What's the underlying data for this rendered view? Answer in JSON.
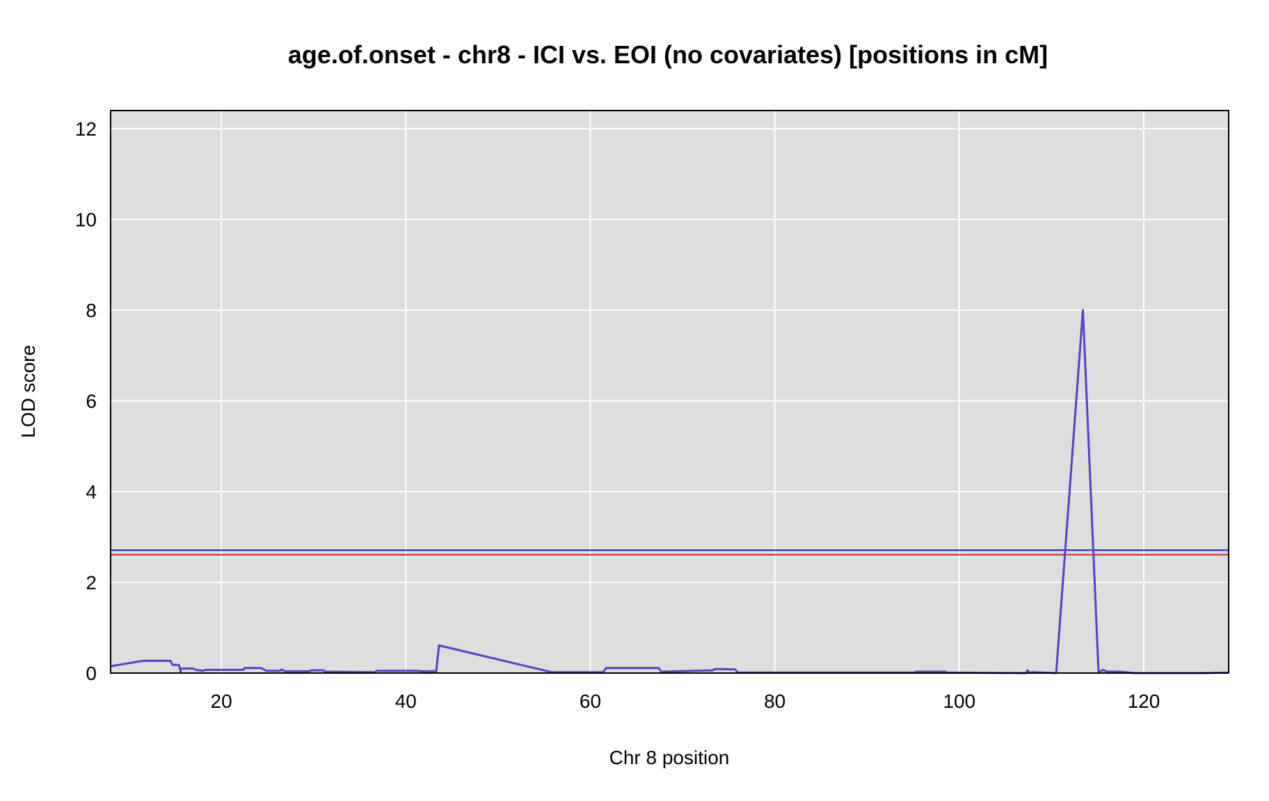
{
  "chart_data": {
    "type": "line",
    "title": "age.of.onset - chr8 - ICI vs. EOI (no covariates) [positions in cM]",
    "xlabel": "Chr 8 position",
    "ylabel": "LOD score",
    "xlim": [
      8,
      129.2
    ],
    "ylim": [
      0,
      12.4
    ],
    "x_ticks": [
      20,
      40,
      60,
      80,
      100,
      120
    ],
    "y_ticks": [
      0,
      2,
      4,
      6,
      8,
      10,
      12
    ],
    "grid": true,
    "background": "#dedede",
    "series": [
      {
        "color": "#5a3fc9",
        "x": [
          8,
          11.5,
          14.5,
          14.7,
          15.4,
          15.6,
          15.6,
          17.0,
          17.2,
          18.0,
          18.3,
          22.4,
          22.5,
          24.3,
          24.6,
          24.9,
          26.4,
          26.5,
          26.9,
          27.2,
          29.6,
          29.7,
          31.1,
          31.2,
          36.7,
          36.8,
          41.4,
          41.5,
          43.3,
          43.6,
          55.8,
          56.2,
          61.4,
          61.7,
          67.4,
          67.7,
          73.3,
          73.5,
          75.7,
          76.0,
          95.1,
          95.3,
          98.5,
          98.7,
          107.2,
          107.4,
          107.6,
          108.0,
          110.5,
          113.4,
          115.1,
          115.6,
          116.0,
          117.5,
          119.0,
          126.5,
          129.2
        ],
        "y": [
          0.15,
          0.27,
          0.27,
          0.18,
          0.18,
          0.02,
          0.1,
          0.1,
          0.07,
          0.05,
          0.07,
          0.07,
          0.11,
          0.11,
          0.08,
          0.05,
          0.05,
          0.08,
          0.04,
          0.04,
          0.04,
          0.06,
          0.06,
          0.03,
          0.02,
          0.05,
          0.05,
          0.04,
          0.04,
          0.61,
          0.02,
          0.02,
          0.02,
          0.11,
          0.11,
          0.03,
          0.06,
          0.09,
          0.08,
          0.01,
          0.01,
          0.03,
          0.03,
          0.01,
          0.0,
          0.06,
          0.01,
          0.02,
          0.0,
          8.0,
          0.02,
          0.07,
          0.03,
          0.03,
          0.0,
          0.0,
          0.01
        ]
      }
    ],
    "threshold_lines": [
      {
        "color": "#1a1adc",
        "y": 2.71
      },
      {
        "color": "#cc2030",
        "y": 2.61
      }
    ]
  }
}
